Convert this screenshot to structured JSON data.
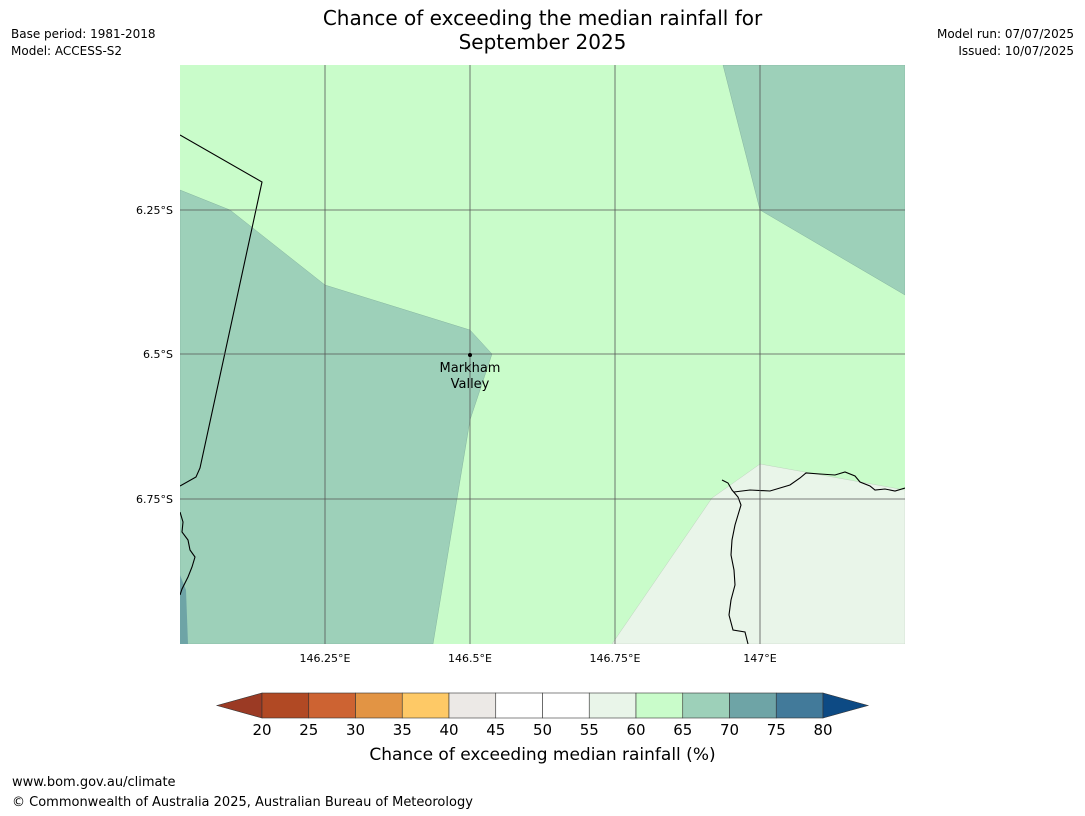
{
  "header": {
    "title_line1": "Chance of exceeding the median rainfall for",
    "title_line2": "September 2025",
    "base_period": "Base period: 1981-2018",
    "model": "Model: ACCESS-S2",
    "model_run": "Model run: 07/07/2025",
    "issued": "Issued: 10/07/2025"
  },
  "map": {
    "place_label_line1": "Markham",
    "place_label_line2": "Valley",
    "lon_ticks": [
      "146.25°E",
      "146.5°E",
      "146.75°E",
      "147°E"
    ],
    "lat_ticks": [
      "6.25°S",
      "6.5°S",
      "6.75°S"
    ],
    "fill_colors": {
      "c55_60": "#e9f5e9",
      "c60_65": "#c9fcca",
      "c65_70": "#9dd0b9",
      "c70_75": "#6ea4a6"
    },
    "grid_color": "#555555"
  },
  "colorbar": {
    "title": "Chance of exceeding median rainfall (%)",
    "labels": [
      "20",
      "25",
      "30",
      "35",
      "40",
      "45",
      "50",
      "55",
      "60",
      "65",
      "70",
      "75",
      "80"
    ],
    "under_color": "#9b3a24",
    "over_color": "#0d4a84",
    "colors": [
      "#b14924",
      "#cd6332",
      "#e29444",
      "#fec966",
      "#ece9e6",
      "#ffffff",
      "#ffffff",
      "#e9f5e9",
      "#c9fcca",
      "#9dd0b9",
      "#6ea4a6",
      "#427a9a"
    ]
  },
  "footer": {
    "url": "www.bom.gov.au/climate",
    "copyright": "© Commonwealth of Australia 2025, Australian Bureau of Meteorology"
  }
}
